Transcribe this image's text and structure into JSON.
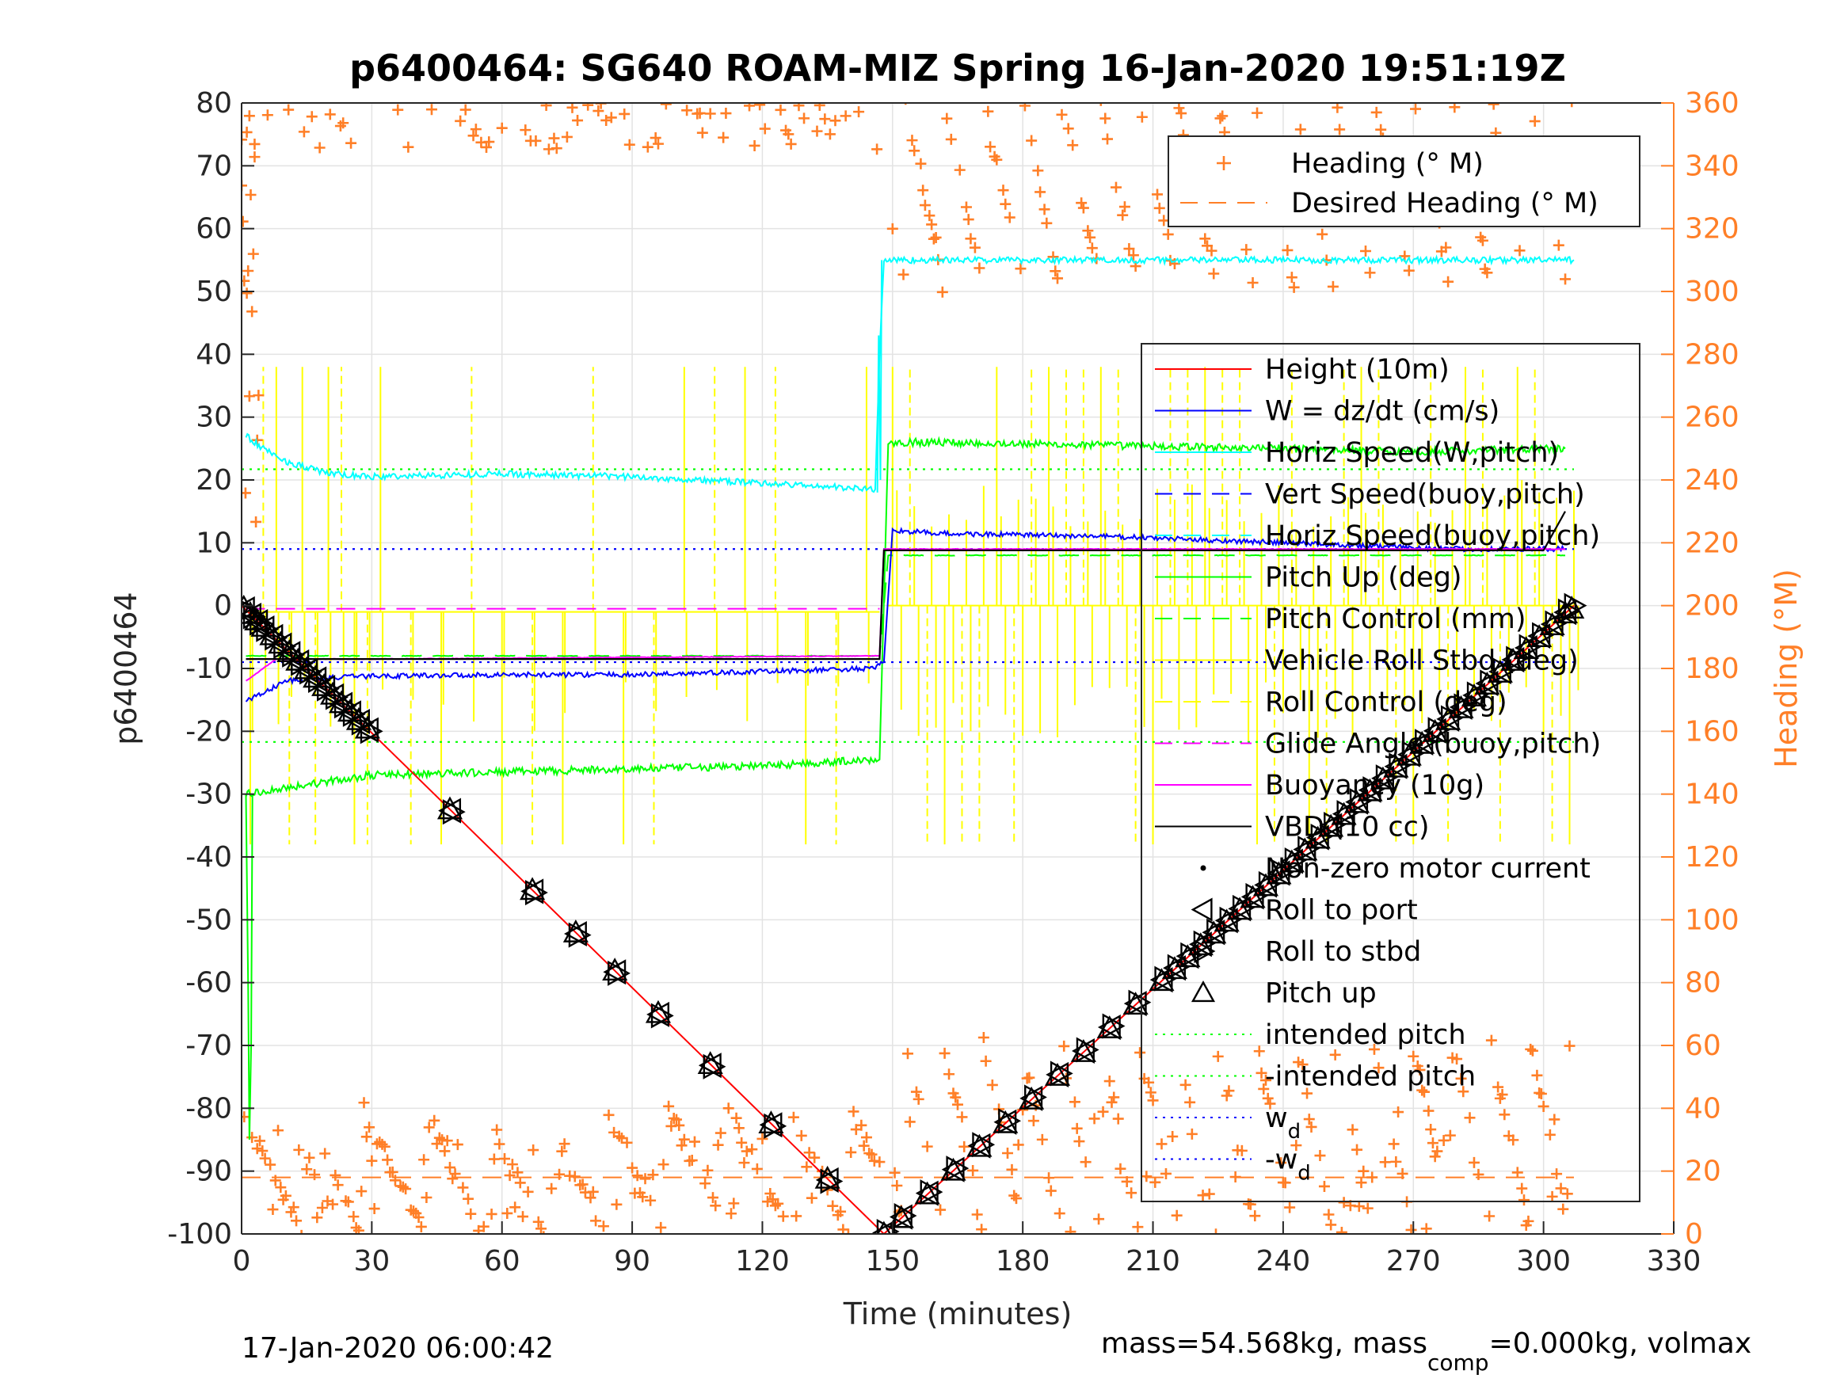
{
  "chart_data": {
    "type": "line",
    "title": "p6400464: SG640 ROAM-MIZ Spring 16-Jan-2020 19:51:19Z",
    "xlabel": "Time (minutes)",
    "ylabel": "p6400464",
    "y2label": "Heading (°M)",
    "xlim": [
      0,
      330
    ],
    "ylim": [
      -100,
      80
    ],
    "y2lim": [
      0,
      360
    ],
    "xticks": [
      0,
      30,
      60,
      90,
      120,
      150,
      180,
      210,
      240,
      270,
      300,
      330
    ],
    "yticks": [
      -100,
      -90,
      -80,
      -70,
      -60,
      -50,
      -40,
      -30,
      -20,
      -10,
      0,
      10,
      20,
      30,
      40,
      50,
      60,
      70,
      80
    ],
    "y2ticks": [
      0,
      20,
      40,
      60,
      80,
      100,
      120,
      140,
      160,
      180,
      200,
      220,
      240,
      260,
      280,
      300,
      320,
      340,
      360
    ],
    "grid": true,
    "legend_heading": {
      "placement": "top-right",
      "entries": [
        {
          "name": "Heading (° M)",
          "color": "#ff7f27",
          "style": "plus"
        },
        {
          "name": "Desired Heading (° M)",
          "color": "#ff7f27",
          "style": "dashed"
        }
      ]
    },
    "legend_main": {
      "placement": "right",
      "entries": [
        {
          "name": "Height (10m)",
          "color": "#ff0000",
          "style": "solid"
        },
        {
          "name": "W = dz/dt (cm/s)",
          "color": "#0000ff",
          "style": "solid"
        },
        {
          "name": "Horiz Speed(W,pitch)",
          "color": "#00ffff",
          "style": "solid"
        },
        {
          "name": "Vert Speed(buoy,pitch)",
          "color": "#0000ff",
          "style": "dashed"
        },
        {
          "name": "Horiz Speed(buoy,pitch)",
          "color": "#00ffff",
          "style": "dashed"
        },
        {
          "name": "Pitch Up (deg)",
          "color": "#00ff00",
          "style": "solid"
        },
        {
          "name": "Pitch Control (mm)",
          "color": "#00ff00",
          "style": "dashed"
        },
        {
          "name": "Vehicle Roll Stbd (deg)",
          "color": "#ffff00",
          "style": "solid"
        },
        {
          "name": "Roll Control (deg)",
          "color": "#ffff00",
          "style": "dashed"
        },
        {
          "name": "Glide Angle (buoy,pitch)",
          "color": "#ff00ff",
          "style": "dashed"
        },
        {
          "name": "Buoyancy (10g)",
          "color": "#ff00ff",
          "style": "solid"
        },
        {
          "name": "VBD (10 cc)",
          "color": "#000000",
          "style": "solid"
        },
        {
          "name": "Non-zero motor current",
          "color": "#000000",
          "style": "dot"
        },
        {
          "name": "Roll to port",
          "color": "#000000",
          "style": "tri-left"
        },
        {
          "name": "Roll to stbd",
          "color": "#000000",
          "style": "tri-right"
        },
        {
          "name": "Pitch up",
          "color": "#000000",
          "style": "tri-up"
        },
        {
          "name": "intended pitch",
          "color": "#00ff00",
          "style": "dotted"
        },
        {
          "name": "-intended pitch",
          "color": "#00ff00",
          "style": "dotted"
        },
        {
          "name": "w_d",
          "color": "#0000ff",
          "style": "dotted"
        },
        {
          "name": "-w_d",
          "color": "#0000ff",
          "style": "dotted"
        }
      ]
    },
    "series": [
      {
        "name": "Height (10m)",
        "color": "#ff0000",
        "x": [
          0,
          148,
          307
        ],
        "y": [
          0,
          -100,
          0
        ]
      },
      {
        "name": "W = dz/dt (cm/s)",
        "color": "#0000ff",
        "x": [
          1,
          5,
          10,
          20,
          30,
          60,
          90,
          120,
          146,
          148,
          150,
          160,
          200,
          240,
          280,
          305
        ],
        "y": [
          -15,
          -14,
          -12,
          -11.5,
          -11.2,
          -11,
          -11,
          -10.5,
          -10,
          -9,
          12,
          11.5,
          11,
          10,
          9,
          9
        ]
      },
      {
        "name": "Horiz Speed(W,pitch)",
        "color": "#00ffff",
        "x": [
          1,
          5,
          10,
          20,
          30,
          60,
          90,
          120,
          146,
          147,
          148,
          150,
          200,
          250,
          307
        ],
        "y": [
          27,
          25,
          23,
          21,
          20.5,
          21,
          20.5,
          19.5,
          18.5,
          40,
          55,
          55,
          55,
          55,
          55
        ]
      },
      {
        "name": "Pitch Up (deg)",
        "color": "#00ff00",
        "x": [
          1,
          10,
          20,
          30,
          60,
          90,
          120,
          146,
          147,
          149,
          160,
          200,
          240,
          270,
          305
        ],
        "y": [
          -30,
          -29,
          -28,
          -27,
          -26.5,
          -26,
          -25.5,
          -24.5,
          -24.5,
          26,
          26,
          25.5,
          25,
          24.5,
          25
        ]
      },
      {
        "name": "Pitch Control (mm)",
        "color": "#00ff00",
        "x": [
          1,
          10,
          30,
          147,
          149,
          200,
          260,
          305
        ],
        "y": [
          -8,
          -8,
          -8,
          -8,
          8,
          8,
          8,
          8
        ]
      },
      {
        "name": "VBD (10 cc)",
        "color": "#000000",
        "x": [
          1,
          3,
          147,
          148,
          200,
          300,
          305
        ],
        "y": [
          -8.5,
          -8.5,
          -8.5,
          8.8,
          8.8,
          8.8,
          15
        ]
      },
      {
        "name": "Buoyancy (10g)",
        "color": "#ff00ff",
        "x": [
          1,
          8,
          30,
          147,
          148,
          305
        ],
        "y": [
          -12,
          -8.5,
          -8.5,
          -8,
          9,
          9
        ]
      },
      {
        "name": "Glide Angle (buoy,pitch)",
        "color": "#ff00ff",
        "x": [
          1,
          147
        ],
        "y": [
          -0.5,
          -0.5
        ]
      },
      {
        "name": "intended pitch",
        "color": "#00ff00",
        "x": [
          0,
          307
        ],
        "y": [
          21.7,
          21.7
        ]
      },
      {
        "name": "-intended pitch",
        "color": "#00ff00",
        "x": [
          0,
          307
        ],
        "y": [
          -21.7,
          -21.7
        ]
      },
      {
        "name": "w_d",
        "color": "#0000ff",
        "x": [
          0,
          307
        ],
        "y": [
          9,
          9
        ]
      },
      {
        "name": "-w_d",
        "color": "#0000ff",
        "x": [
          0,
          307
        ],
        "y": [
          -9,
          -9
        ]
      }
    ],
    "desired_heading": {
      "y2": 18
    },
    "footer_left": "17-Jan-2020 06:00:42",
    "footer_right_prefix": "mass=54.568kg, mass",
    "footer_right_sub": "comp",
    "footer_right_suffix": "=0.000kg, volmax"
  }
}
